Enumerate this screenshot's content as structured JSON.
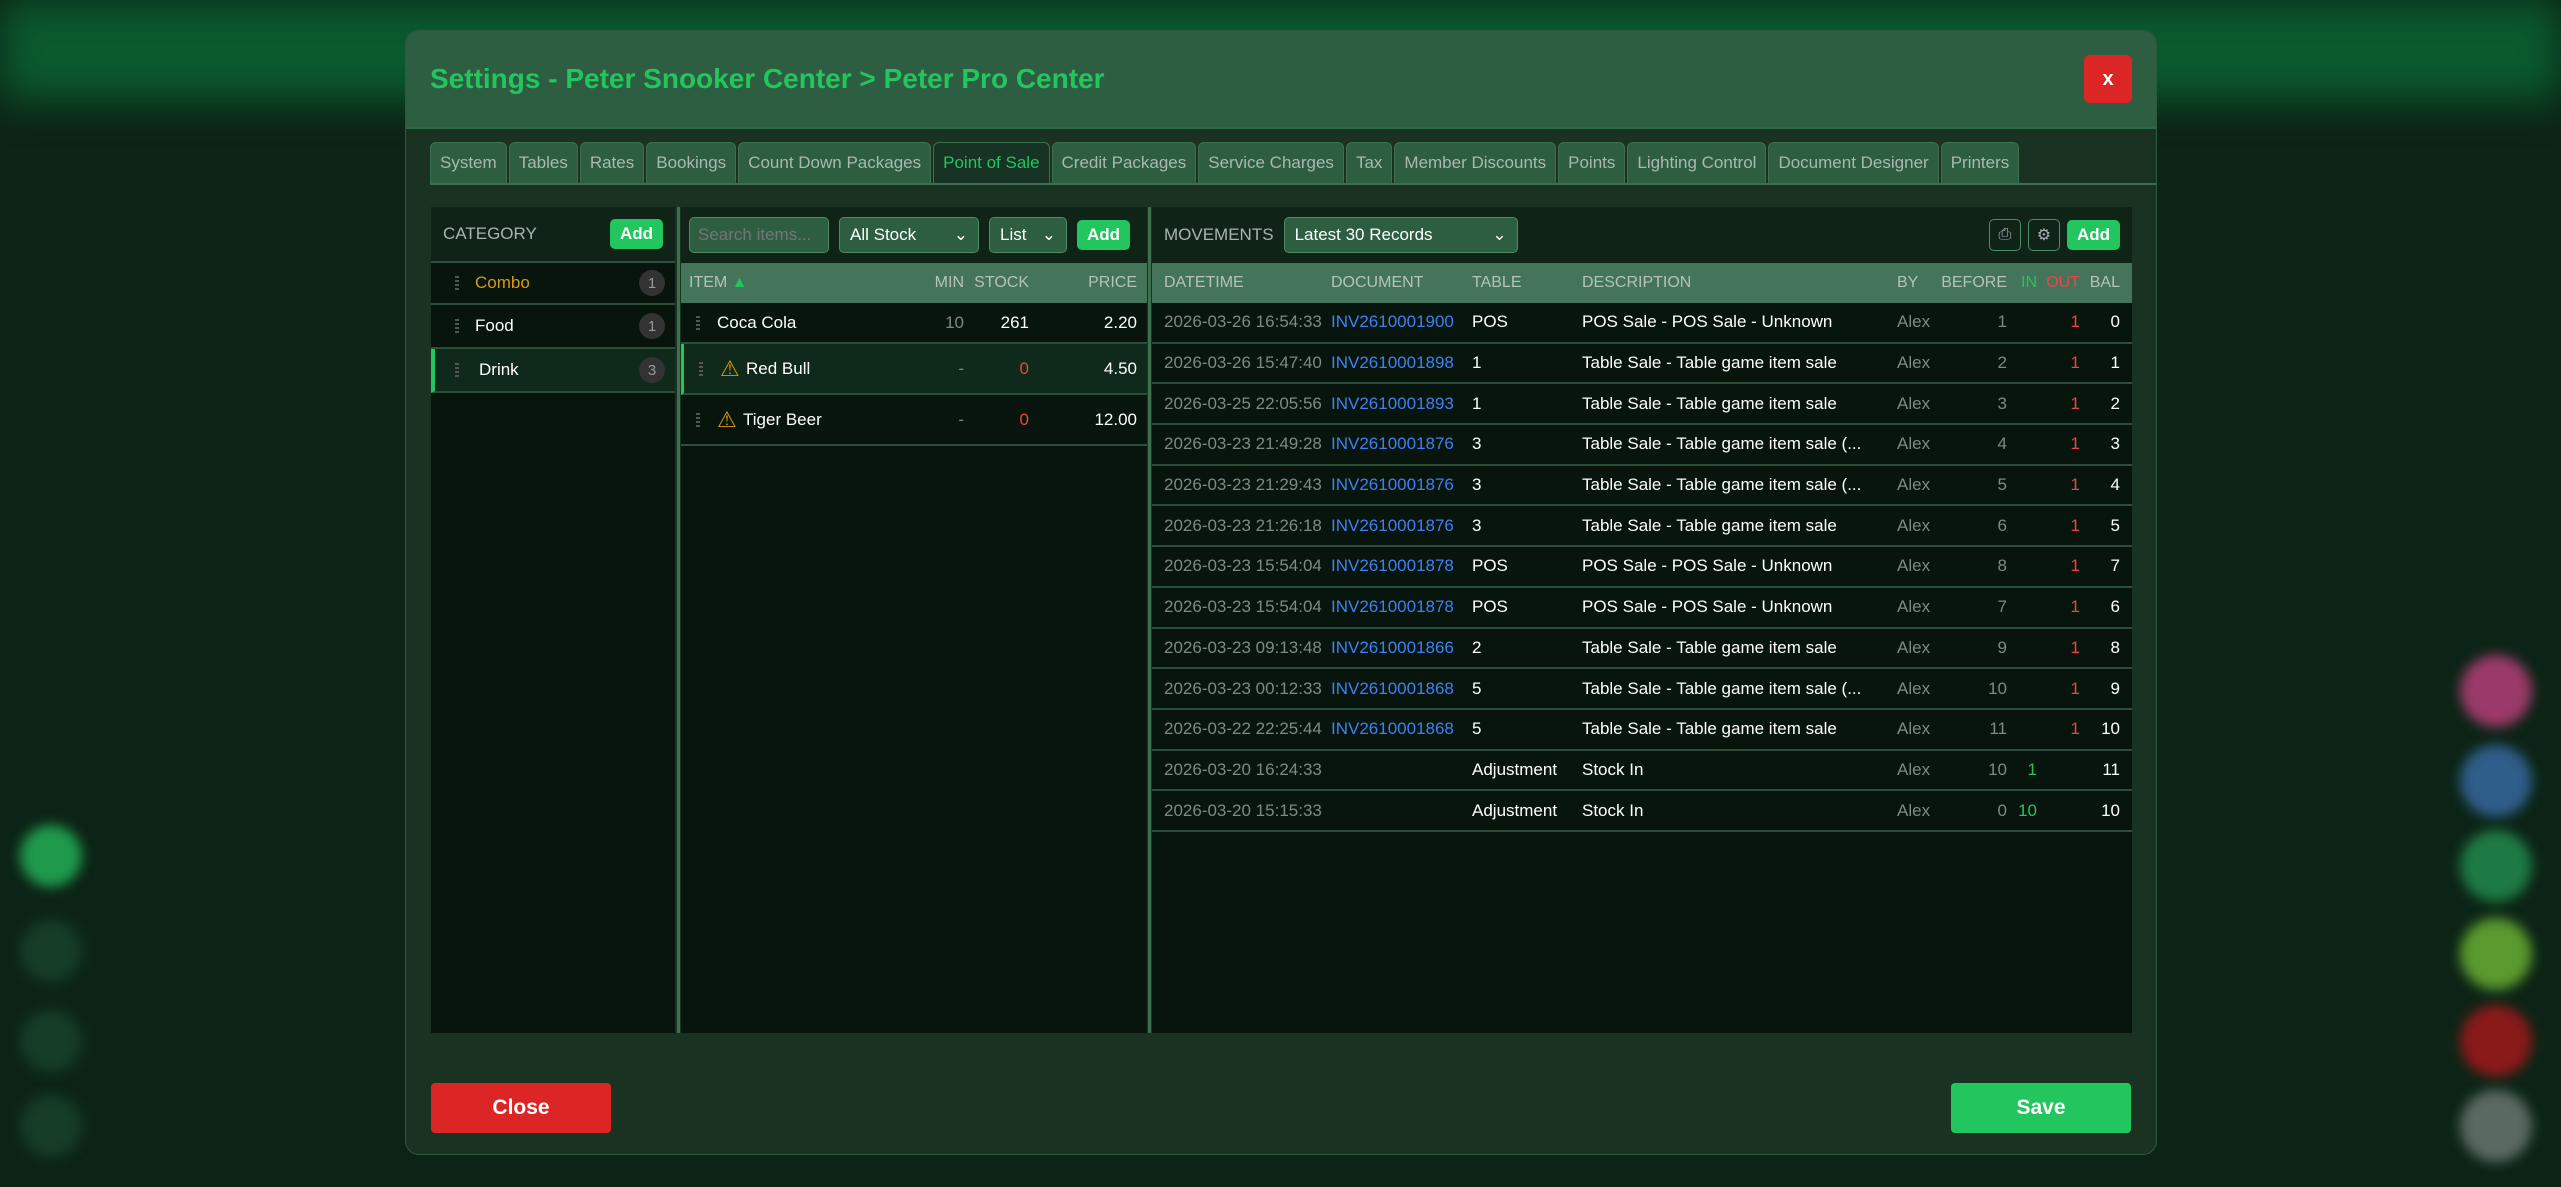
{
  "title": "Settings - Peter Snooker Center > Peter Pro Center",
  "close_x": "x",
  "tabs": [
    "System",
    "Tables",
    "Rates",
    "Bookings",
    "Count Down Packages",
    "Point of Sale",
    "Credit Packages",
    "Service Charges",
    "Tax",
    "Member Discounts",
    "Points",
    "Lighting Control",
    "Document Designer",
    "Printers"
  ],
  "active_tab": "Point of Sale",
  "category": {
    "label": "CATEGORY",
    "add": "Add",
    "items": [
      {
        "name": "Combo",
        "count": "1"
      },
      {
        "name": "Food",
        "count": "1"
      },
      {
        "name": "Drink",
        "count": "3"
      }
    ],
    "selected": "Drink"
  },
  "items": {
    "search_placeholder": "Search items...",
    "stock_filter": "All Stock",
    "view": "List",
    "add": "Add",
    "headers": {
      "item": "ITEM",
      "sort": "▲",
      "min": "MIN",
      "stock": "STOCK",
      "price": "PRICE"
    },
    "rows": [
      {
        "name": "Coca Cola",
        "min": "10",
        "stock": "261",
        "price": "2.20",
        "warn": false
      },
      {
        "name": "Red Bull",
        "min": "-",
        "stock": "0",
        "price": "4.50",
        "warn": true
      },
      {
        "name": "Tiger Beer",
        "min": "-",
        "stock": "0",
        "price": "12.00",
        "warn": true
      }
    ],
    "selected": "Red Bull"
  },
  "movements": {
    "label": "MOVEMENTS",
    "range": "Latest 30 Records",
    "add": "Add",
    "icons": [
      "printer-icon",
      "gear-icon"
    ],
    "headers": {
      "datetime": "DATETIME",
      "document": "DOCUMENT",
      "table": "TABLE",
      "description": "DESCRIPTION",
      "by": "BY",
      "before": "BEFORE",
      "in": "IN",
      "out": "OUT",
      "bal": "BAL"
    },
    "rows": [
      {
        "datetime": "2026-03-26 16:54:33",
        "document": "INV2610001900",
        "table": "POS",
        "description": "POS Sale - POS Sale - Unknown",
        "by": "Alex",
        "before": "1",
        "in": "",
        "out": "1",
        "bal": "0"
      },
      {
        "datetime": "2026-03-26 15:47:40",
        "document": "INV2610001898",
        "table": "1",
        "description": "Table Sale - Table game item sale",
        "by": "Alex",
        "before": "2",
        "in": "",
        "out": "1",
        "bal": "1"
      },
      {
        "datetime": "2026-03-25 22:05:56",
        "document": "INV2610001893",
        "table": "1",
        "description": "Table Sale - Table game item sale",
        "by": "Alex",
        "before": "3",
        "in": "",
        "out": "1",
        "bal": "2"
      },
      {
        "datetime": "2026-03-23 21:49:28",
        "document": "INV2610001876",
        "table": "3",
        "description": "Table Sale - Table game item sale (...",
        "by": "Alex",
        "before": "4",
        "in": "",
        "out": "1",
        "bal": "3"
      },
      {
        "datetime": "2026-03-23 21:29:43",
        "document": "INV2610001876",
        "table": "3",
        "description": "Table Sale - Table game item sale (...",
        "by": "Alex",
        "before": "5",
        "in": "",
        "out": "1",
        "bal": "4"
      },
      {
        "datetime": "2026-03-23 21:26:18",
        "document": "INV2610001876",
        "table": "3",
        "description": "Table Sale - Table game item sale",
        "by": "Alex",
        "before": "6",
        "in": "",
        "out": "1",
        "bal": "5"
      },
      {
        "datetime": "2026-03-23 15:54:04",
        "document": "INV2610001878",
        "table": "POS",
        "description": "POS Sale - POS Sale - Unknown",
        "by": "Alex",
        "before": "8",
        "in": "",
        "out": "1",
        "bal": "7"
      },
      {
        "datetime": "2026-03-23 15:54:04",
        "document": "INV2610001878",
        "table": "POS",
        "description": "POS Sale - POS Sale - Unknown",
        "by": "Alex",
        "before": "7",
        "in": "",
        "out": "1",
        "bal": "6"
      },
      {
        "datetime": "2026-03-23 09:13:48",
        "document": "INV2610001866",
        "table": "2",
        "description": "Table Sale - Table game item sale",
        "by": "Alex",
        "before": "9",
        "in": "",
        "out": "1",
        "bal": "8"
      },
      {
        "datetime": "2026-03-23 00:12:33",
        "document": "INV2610001868",
        "table": "5",
        "description": "Table Sale - Table game item sale (...",
        "by": "Alex",
        "before": "10",
        "in": "",
        "out": "1",
        "bal": "9"
      },
      {
        "datetime": "2026-03-22 22:25:44",
        "document": "INV2610001868",
        "table": "5",
        "description": "Table Sale - Table game item sale",
        "by": "Alex",
        "before": "11",
        "in": "",
        "out": "1",
        "bal": "10"
      },
      {
        "datetime": "2026-03-20 16:24:33",
        "document": "",
        "table": "Adjustment",
        "description": "Stock In",
        "by": "Alex",
        "before": "10",
        "in": "1",
        "out": "",
        "bal": "11"
      },
      {
        "datetime": "2026-03-20 15:15:33",
        "document": "",
        "table": "Adjustment",
        "description": "Stock In",
        "by": "Alex",
        "before": "0",
        "in": "10",
        "out": "",
        "bal": "10"
      }
    ]
  },
  "footer": {
    "close": "Close",
    "save": "Save"
  },
  "colors": {
    "accent": "#22c55e",
    "danger": "#dc2626",
    "link": "#3b82f6",
    "warning": "#d89a12"
  }
}
